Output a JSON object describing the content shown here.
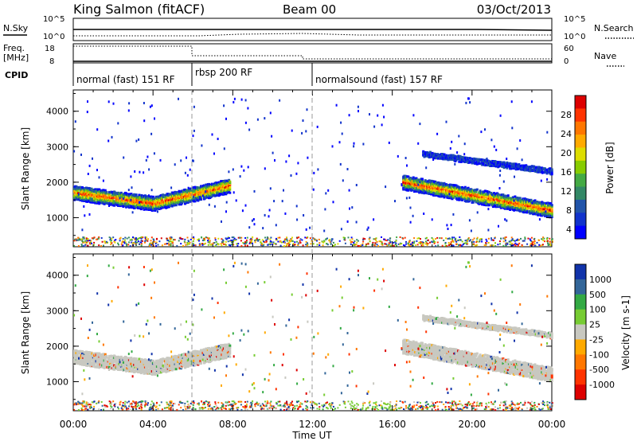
{
  "header": {
    "station": "King Salmon (fitACF)",
    "beam": "Beam 00",
    "date": "03/Oct/2013"
  },
  "top_panels": {
    "nsky_label": "N.Sky",
    "nsearch_label": "N.Search",
    "freq_label": "Freq.",
    "freq_unit": "[MHz]",
    "nave_label": "Nave",
    "cpid_label": "CPID",
    "nsky_ticks": [
      "10^5",
      "10^0"
    ],
    "nsearch_ticks": [
      "10^5",
      "10^0"
    ],
    "freq_ticks": [
      "18",
      "8"
    ],
    "nave_ticks": [
      "60",
      "0"
    ]
  },
  "cpid_segments": [
    {
      "label": "normal (fast) 151 RF",
      "start_h": 0,
      "end_h": 6
    },
    {
      "label": "rbsp 200 RF",
      "start_h": 6,
      "end_h": 12
    },
    {
      "label": "normalsound (fast) 157 RF",
      "start_h": 12,
      "end_h": 24
    }
  ],
  "power_colorbar": {
    "label": "Power [dB]",
    "ticks": [
      "28",
      "24",
      "20",
      "16",
      "12",
      "8",
      "4"
    ],
    "colors": [
      "#dd0000",
      "#ff3300",
      "#ff7700",
      "#ffaa00",
      "#dddd00",
      "#88cc00",
      "#44aa44",
      "#338866",
      "#2255aa",
      "#1133cc",
      "#0000ff"
    ]
  },
  "velocity_colorbar": {
    "label": "Velocity [m s-1]",
    "ticks": [
      "1000",
      "500",
      "100",
      "25",
      "-25",
      "-100",
      "-500",
      "-1000"
    ],
    "colors": [
      "#1133aa",
      "#336699",
      "#33aa44",
      "#77cc33",
      "#c8c8c0",
      "#ffaa00",
      "#ff7700",
      "#ff3300",
      "#dd0000"
    ]
  },
  "axes": {
    "ylabel": "Slant Range [km]",
    "xlabel": "Time UT",
    "xticks": [
      "00:00",
      "04:00",
      "08:00",
      "12:00",
      "16:00",
      "20:00",
      "00:00"
    ],
    "yticks": [
      "4000",
      "3000",
      "2000",
      "1000"
    ]
  },
  "chart_data": {
    "type": "heatmap",
    "title": "King Salmon (fitACF) Beam 00 03/Oct/2013",
    "xlabel": "Time UT",
    "ylabel": "Slant Range [km]",
    "x_range_hours": [
      0,
      24
    ],
    "ylim_km": [
      180,
      4600
    ],
    "cpid_changes_h": [
      6,
      12
    ],
    "power_bands": [
      {
        "name": "morning echo",
        "t_start": 0.0,
        "t_end": 7.8,
        "range_start_km": 1700,
        "range_end_km": 1900,
        "range_mid_km": 1400,
        "mid_h": 4.0,
        "peak_db": 28
      },
      {
        "name": "evening echo",
        "t_start": 16.5,
        "t_end": 24.0,
        "range_start_km": 2000,
        "range_end_km": 1200,
        "peak_db": 28
      },
      {
        "name": "evening upper band",
        "t_start": 17.5,
        "t_end": 24.0,
        "range_start_km": 2800,
        "range_end_km": 2300,
        "peak_db": 8
      }
    ],
    "velocity_dominant": "-25 to 25"
  }
}
